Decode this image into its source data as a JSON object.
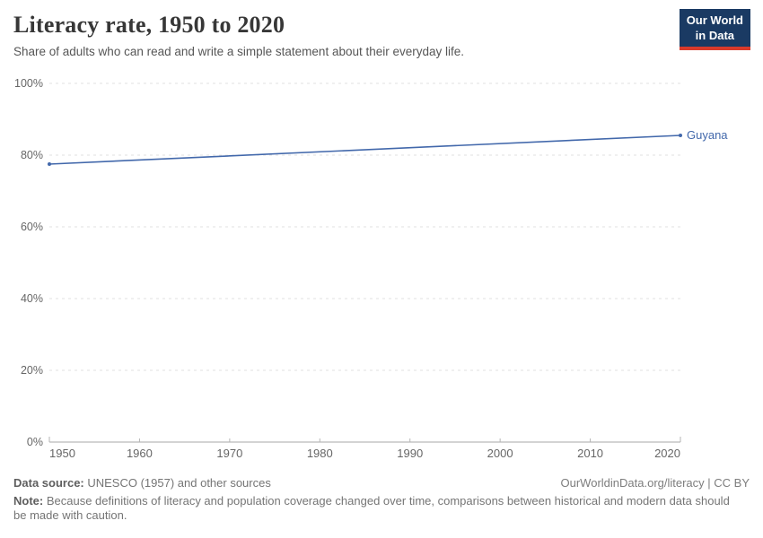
{
  "header": {
    "title": "Literacy rate, 1950 to 2020",
    "subtitle": "Share of adults who can read and write a simple statement about their everyday life."
  },
  "logo": {
    "line1": "Our World",
    "line2": "in Data",
    "bg_color": "#1a3a63",
    "accent_color": "#d93a2b"
  },
  "chart_data": {
    "type": "line",
    "title": "Literacy rate, 1950 to 2020",
    "subtitle": "Share of adults who can read and write a simple statement about their everyday life.",
    "x": [
      1950,
      2020
    ],
    "series": [
      {
        "name": "Guyana",
        "color": "#4268ab",
        "values": [
          77.5,
          85.5
        ]
      }
    ],
    "xlabel": "",
    "ylabel": "",
    "xlim": [
      1950,
      2020
    ],
    "ylim": [
      0,
      100
    ],
    "xticks": [
      1950,
      1960,
      1970,
      1980,
      1990,
      2000,
      2010,
      2020
    ],
    "yticks": [
      0,
      20,
      40,
      60,
      80,
      100
    ],
    "ytick_suffix": "%",
    "grid": "horizontal-dashed",
    "grid_color": "#e2e2e2",
    "axis_color": "#a7a7a7",
    "legend_position": "end-of-line-label"
  },
  "footer": {
    "datasource_label": "Data source:",
    "datasource_text": " UNESCO (1957) and other sources",
    "link_text": "OurWorldinData.org/literacy | CC BY",
    "note_label": "Note:",
    "note_text": " Because definitions of literacy and population coverage changed over time, comparisons between historical and modern data should be made with caution."
  }
}
